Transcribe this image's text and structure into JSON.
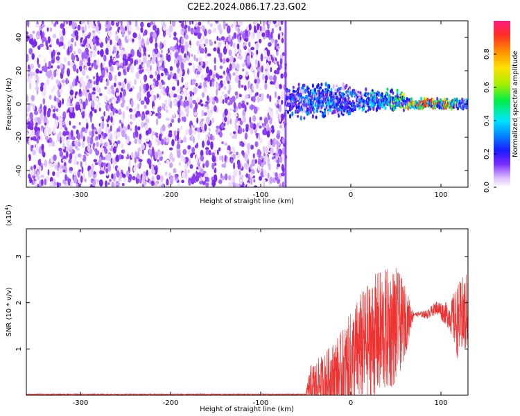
{
  "title": "C2E2.2024.086.17.23.G02",
  "chart_data": [
    {
      "type": "heatmap",
      "xlabel": "Height of straight line (km)",
      "ylabel": "Frequency (Hz)",
      "xlim": [
        -360,
        130
      ],
      "ylim": [
        -50,
        50
      ],
      "xticks": [
        -300,
        -200,
        -100,
        0,
        100
      ],
      "yticks": [
        -40,
        -20,
        0,
        20,
        40
      ],
      "colorbar": {
        "label": "Normalized spectral amplitude",
        "range": [
          0,
          1
        ],
        "ticks": [
          "0.0",
          "0.2",
          "0.4",
          "0.6",
          "0.8"
        ]
      },
      "noise_region_x": [
        -360,
        -72
      ],
      "signal_center_freq": 0,
      "signal_strength_profile": [
        {
          "x": -72,
          "amp": 0.35
        },
        {
          "x": -60,
          "amp": 0.4
        },
        {
          "x": -40,
          "amp": 0.45
        },
        {
          "x": -20,
          "amp": 0.45
        },
        {
          "x": 0,
          "amp": 0.4
        },
        {
          "x": 20,
          "amp": 0.55
        },
        {
          "x": 40,
          "amp": 0.6
        },
        {
          "x": 60,
          "amp": 0.75
        },
        {
          "x": 80,
          "amp": 0.95
        },
        {
          "x": 110,
          "amp": 0.95
        },
        {
          "x": 120,
          "amp": 0.55
        },
        {
          "x": 130,
          "amp": 0.5
        }
      ]
    },
    {
      "type": "line",
      "xlabel": "Height of straight line (km)",
      "ylabel": "SNR (10 * v/v)",
      "y_exponent": "(x10",
      "y_exponent_power": "4",
      "y_exponent_close": ")",
      "xlim": [
        -360,
        130
      ],
      "ylim": [
        0,
        3.6
      ],
      "xticks": [
        -300,
        -200,
        -100,
        0,
        100
      ],
      "yticks": [
        1,
        2,
        3
      ],
      "color": "#ee3333",
      "envelope": [
        {
          "x": -360,
          "mean": 0.02,
          "amp": 0.01
        },
        {
          "x": -50,
          "mean": 0.02,
          "amp": 0.01
        },
        {
          "x": -45,
          "mean": 0.15,
          "amp": 0.5
        },
        {
          "x": -30,
          "mean": 0.3,
          "amp": 0.6
        },
        {
          "x": -10,
          "mean": 0.5,
          "amp": 0.9
        },
        {
          "x": 10,
          "mean": 1.0,
          "amp": 1.2
        },
        {
          "x": 30,
          "mean": 1.3,
          "amp": 1.4
        },
        {
          "x": 50,
          "mean": 1.5,
          "amp": 1.3
        },
        {
          "x": 60,
          "mean": 1.6,
          "amp": 0.8
        },
        {
          "x": 70,
          "mean": 1.75,
          "amp": 0.03
        },
        {
          "x": 85,
          "mean": 1.75,
          "amp": 0.1
        },
        {
          "x": 95,
          "mean": 1.9,
          "amp": 0.15
        },
        {
          "x": 110,
          "mean": 1.7,
          "amp": 0.3
        },
        {
          "x": 118,
          "mean": 1.6,
          "amp": 0.8
        },
        {
          "x": 130,
          "mean": 1.8,
          "amp": 0.9
        }
      ]
    }
  ]
}
